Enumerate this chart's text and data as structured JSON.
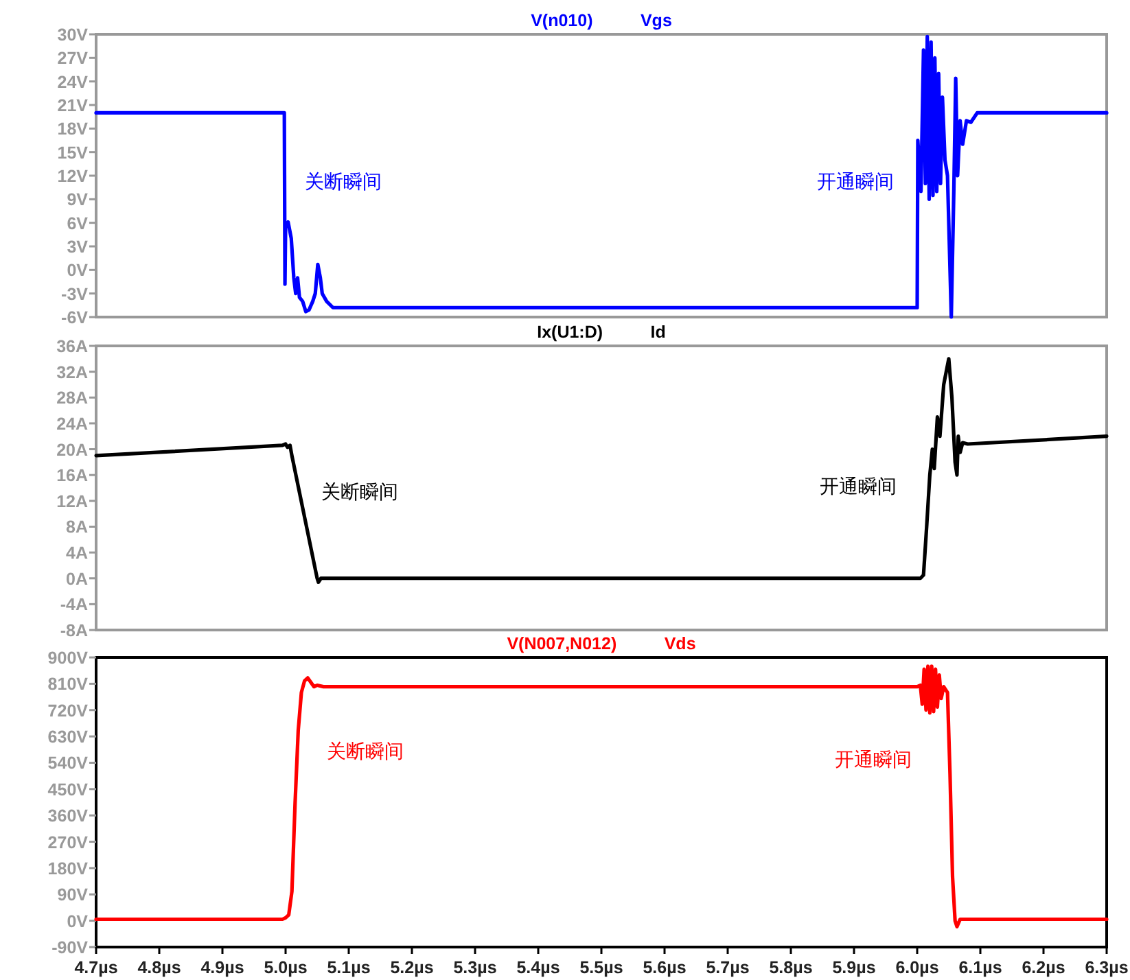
{
  "chart_data": [
    {
      "type": "line",
      "title": "Vgs",
      "x": [
        4.7,
        4.998,
        4.999,
        5.0,
        5.004,
        5.009,
        5.013,
        5.016,
        5.019,
        5.022,
        5.027,
        5.032,
        5.037,
        5.043,
        5.047,
        5.051,
        5.055,
        5.058,
        5.065,
        5.075,
        6.0,
        6.001,
        6.006,
        6.01,
        6.013,
        6.016,
        6.019,
        6.022,
        6.025,
        6.028,
        6.031,
        6.034,
        6.037,
        6.04,
        6.044,
        6.048,
        6.054,
        6.058,
        6.061,
        6.064,
        6.068,
        6.072,
        6.078,
        6.085,
        6.095,
        6.3
      ],
      "series": [
        {
          "name": "V(n010)",
          "color": "#0000ff",
          "values": [
            20,
            20,
            -1.8,
            5.5,
            6.1,
            4,
            -1,
            -3,
            -1,
            -3.5,
            -4,
            -5.3,
            -5.1,
            -4,
            -3,
            0.7,
            -1,
            -3,
            -4,
            -4.8,
            -4.8,
            16.5,
            10,
            28,
            11,
            29.7,
            9,
            29,
            9.5,
            27,
            10,
            25,
            11,
            22,
            14,
            12,
            -6,
            10,
            24.4,
            12,
            19,
            16,
            19,
            18.8,
            20,
            20
          ]
        }
      ],
      "xlim": [
        4.7,
        6.3
      ],
      "ylim": [
        -6,
        30
      ],
      "yticks": [
        {
          "value": -6,
          "label": "-6V"
        },
        {
          "value": -3,
          "label": "-3V"
        },
        {
          "value": 0,
          "label": "0V"
        },
        {
          "value": 3,
          "label": "3V"
        },
        {
          "value": 6,
          "label": "6V"
        },
        {
          "value": 9,
          "label": "9V"
        },
        {
          "value": 12,
          "label": "12V"
        },
        {
          "value": 15,
          "label": "15V"
        },
        {
          "value": 18,
          "label": "18V"
        },
        {
          "value": 21,
          "label": "21V"
        },
        {
          "value": 24,
          "label": "24V"
        },
        {
          "value": 27,
          "label": "27V"
        },
        {
          "value": 30,
          "label": "30V"
        }
      ],
      "tick_labels": "y",
      "annotations": [
        "关断瞬间",
        "开通瞬间"
      ]
    },
    {
      "type": "line",
      "title": "Id",
      "x": [
        4.7,
        4.995,
        5.0,
        5.003,
        5.007,
        5.01,
        5.05,
        5.052,
        5.056,
        5.06,
        6.005,
        6.01,
        6.015,
        6.02,
        6.024,
        6.027,
        6.032,
        6.036,
        6.042,
        6.05,
        6.055,
        6.06,
        6.063,
        6.065,
        6.068,
        6.072,
        6.08,
        6.3
      ],
      "series": [
        {
          "name": "Ix(U1:D)",
          "color": "#000000",
          "values": [
            19,
            20.6,
            20.8,
            20.3,
            20.6,
            19,
            0,
            -0.6,
            0,
            0,
            0,
            0.5,
            8,
            16,
            20,
            17,
            25,
            22,
            30,
            34,
            28,
            18,
            16,
            22,
            19.5,
            21,
            20.8,
            22
          ]
        }
      ],
      "xlim": [
        4.7,
        6.3
      ],
      "ylim": [
        -8,
        36
      ],
      "yticks": [
        {
          "value": -8,
          "label": "-8A"
        },
        {
          "value": -4,
          "label": "-4A"
        },
        {
          "value": 0,
          "label": "0A"
        },
        {
          "value": 4,
          "label": "4A"
        },
        {
          "value": 8,
          "label": "8A"
        },
        {
          "value": 12,
          "label": "12A"
        },
        {
          "value": 16,
          "label": "16A"
        },
        {
          "value": 20,
          "label": "20A"
        },
        {
          "value": 24,
          "label": "24A"
        },
        {
          "value": 28,
          "label": "28A"
        },
        {
          "value": 32,
          "label": "32A"
        },
        {
          "value": 36,
          "label": "36A"
        }
      ],
      "tick_labels": "y",
      "annotations": [
        "关断瞬间",
        "开通瞬间"
      ]
    },
    {
      "type": "line",
      "title": "Vds",
      "x": [
        4.7,
        4.995,
        5.0,
        5.005,
        5.01,
        5.015,
        5.02,
        5.025,
        5.03,
        5.035,
        5.04,
        5.045,
        5.05,
        5.06,
        6.0,
        6.005,
        6.008,
        6.011,
        6.014,
        6.017,
        6.02,
        6.023,
        6.026,
        6.029,
        6.032,
        6.035,
        6.038,
        6.042,
        6.048,
        6.052,
        6.056,
        6.06,
        6.063,
        6.068,
        6.3
      ],
      "series": [
        {
          "name": "V(N007,N012)",
          "color": "#ff0000",
          "values": [
            5,
            5,
            10,
            20,
            100,
            400,
            650,
            780,
            820,
            830,
            815,
            800,
            805,
            800,
            800,
            805,
            740,
            860,
            720,
            870,
            710,
            870,
            715,
            860,
            730,
            840,
            760,
            800,
            780,
            500,
            150,
            0,
            -20,
            5,
            5
          ]
        }
      ],
      "xlim": [
        4.7,
        6.3
      ],
      "xticks": [
        {
          "value": 4.7,
          "label": "4.7µs"
        },
        {
          "value": 4.8,
          "label": "4.8µs"
        },
        {
          "value": 4.9,
          "label": "4.9µs"
        },
        {
          "value": 5.0,
          "label": "5.0µs"
        },
        {
          "value": 5.1,
          "label": "5.1µs"
        },
        {
          "value": 5.2,
          "label": "5.2µs"
        },
        {
          "value": 5.3,
          "label": "5.3µs"
        },
        {
          "value": 5.4,
          "label": "5.4µs"
        },
        {
          "value": 5.5,
          "label": "5.5µs"
        },
        {
          "value": 5.6,
          "label": "5.6µs"
        },
        {
          "value": 5.7,
          "label": "5.7µs"
        },
        {
          "value": 5.8,
          "label": "5.8µs"
        },
        {
          "value": 5.9,
          "label": "5.9µs"
        },
        {
          "value": 6.0,
          "label": "6.0µs"
        },
        {
          "value": 6.1,
          "label": "6.1µs"
        },
        {
          "value": 6.2,
          "label": "6.2µs"
        },
        {
          "value": 6.3,
          "label": "6.3µs"
        }
      ],
      "ylim": [
        -90,
        900
      ],
      "yticks": [
        {
          "value": -90,
          "label": "-90V"
        },
        {
          "value": 0,
          "label": "0V"
        },
        {
          "value": 90,
          "label": "90V"
        },
        {
          "value": 180,
          "label": "180V"
        },
        {
          "value": 270,
          "label": "270V"
        },
        {
          "value": 360,
          "label": "360V"
        },
        {
          "value": 450,
          "label": "450V"
        },
        {
          "value": 540,
          "label": "540V"
        },
        {
          "value": 630,
          "label": "630V"
        },
        {
          "value": 720,
          "label": "720V"
        },
        {
          "value": 810,
          "label": "810V"
        },
        {
          "value": 900,
          "label": "900V"
        }
      ],
      "annotations": [
        "关断瞬间",
        "开通瞬间"
      ]
    }
  ]
}
